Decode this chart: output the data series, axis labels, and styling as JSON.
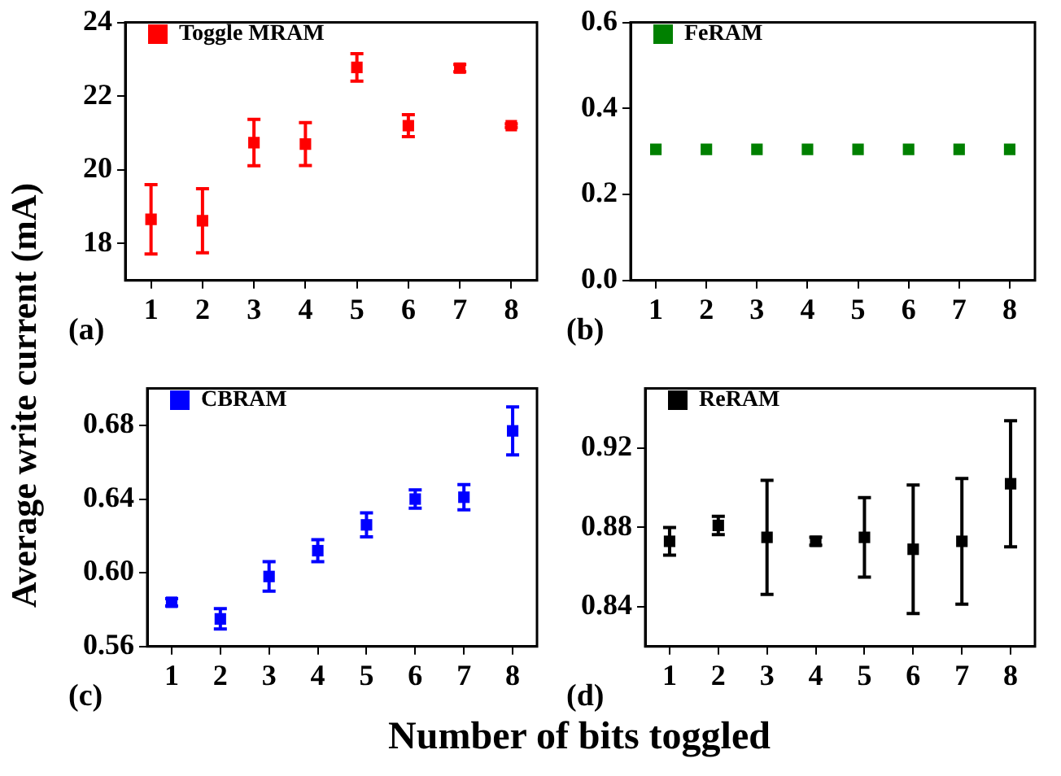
{
  "chart_data": [
    {
      "type": "scatter",
      "ylabel": "Average write current (mA)",
      "annotations": [
        "(a)"
      ],
      "x": [
        1,
        2,
        3,
        4,
        5,
        6,
        7,
        8
      ],
      "xlim": [
        0.5,
        8.5
      ],
      "xticks": [
        1,
        2,
        3,
        4,
        5,
        6,
        7,
        8
      ],
      "ylim": [
        17,
        24
      ],
      "yticks": [
        18,
        20,
        22,
        24
      ],
      "grid": false,
      "legend": "top left",
      "marker": "square",
      "series": [
        {
          "name": "Toggle MRAM",
          "color": "#ff0000",
          "values": [
            18.66,
            18.62,
            20.74,
            20.7,
            22.78,
            21.2,
            22.76,
            21.2
          ],
          "errors": [
            0.94,
            0.87,
            0.63,
            0.58,
            0.37,
            0.3,
            0.1,
            0.05
          ]
        }
      ]
    },
    {
      "type": "scatter",
      "annotations": [
        "(b)"
      ],
      "x": [
        1,
        2,
        3,
        4,
        5,
        6,
        7,
        8
      ],
      "xlim": [
        0.5,
        8.5
      ],
      "xticks": [
        1,
        2,
        3,
        4,
        5,
        6,
        7,
        8
      ],
      "ylim": [
        0,
        0.6
      ],
      "yticks": [
        {
          "value": 0,
          "label": "0.0"
        },
        0.2,
        0.4,
        0.6
      ],
      "grid": false,
      "legend": "top left",
      "marker": "square",
      "series": [
        {
          "name": "FeRAM",
          "color": "#008000",
          "values": [
            0.305,
            0.305,
            0.305,
            0.305,
            0.305,
            0.305,
            0.305,
            0.305
          ]
        }
      ]
    },
    {
      "type": "scatter",
      "xlabel": "Number of bits toggled",
      "annotations": [
        "(c)"
      ],
      "x": [
        1,
        2,
        3,
        4,
        5,
        6,
        7,
        8
      ],
      "xlim": [
        0.5,
        8.5
      ],
      "xticks": [
        1,
        2,
        3,
        4,
        5,
        6,
        7,
        8
      ],
      "ylim": [
        0.56,
        0.7
      ],
      "yticks": [
        0.56,
        {
          "value": 0.6,
          "label": "0.60"
        },
        0.64,
        0.68
      ],
      "grid": false,
      "legend": "top left",
      "marker": "square",
      "series": [
        {
          "name": "CBRAM",
          "color": "#0000ff",
          "values": [
            0.584,
            0.575,
            0.598,
            0.612,
            0.626,
            0.64,
            0.641,
            0.677
          ],
          "errors": [
            0.002,
            0.0055,
            0.008,
            0.006,
            0.0065,
            0.005,
            0.0068,
            0.013
          ]
        }
      ]
    },
    {
      "type": "scatter",
      "annotations": [
        "(d)"
      ],
      "x": [
        1,
        2,
        3,
        4,
        5,
        6,
        7,
        8
      ],
      "xlim": [
        0.5,
        8.5
      ],
      "xticks": [
        1,
        2,
        3,
        4,
        5,
        6,
        7,
        8
      ],
      "ylim": [
        0.82,
        0.95
      ],
      "yticks": [
        0.84,
        0.88,
        0.92
      ],
      "grid": false,
      "legend": "top left",
      "marker": "square",
      "series": [
        {
          "name": "ReRAM",
          "color": "#000000",
          "values": [
            0.873,
            0.881,
            0.875,
            0.873,
            0.875,
            0.869,
            0.873,
            0.902
          ],
          "errors": [
            0.007,
            0.0046,
            0.0287,
            0.002,
            0.02,
            0.0324,
            0.0317,
            0.0318
          ]
        }
      ]
    }
  ]
}
